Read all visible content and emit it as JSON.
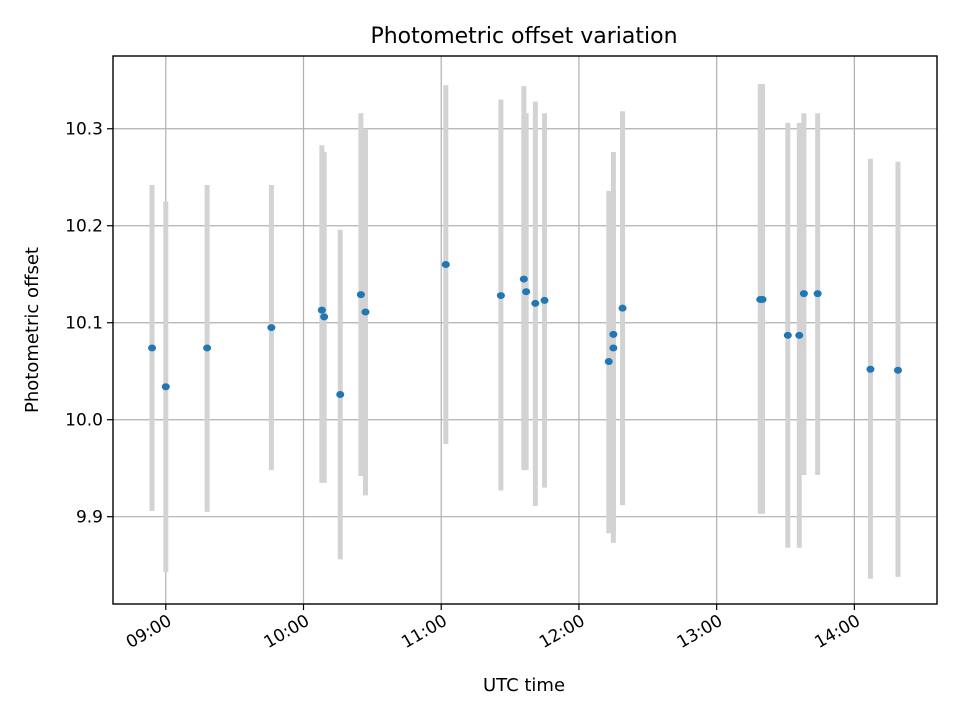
{
  "chart_data": {
    "type": "scatter",
    "title": "Photometric offset variation",
    "xlabel": "UTC time",
    "ylabel": "Photometric offset",
    "x_ticks": [
      "09:00",
      "10:00",
      "11:00",
      "12:00",
      "13:00",
      "14:00"
    ],
    "y_ticks": [
      "9.9",
      "10.0",
      "10.1",
      "10.2",
      "10.3"
    ],
    "xlim": [
      "08:37",
      "14:36"
    ],
    "ylim": [
      9.81,
      10.375
    ],
    "grid": true,
    "marker_color": "#1f77b4",
    "errorbar_color": "#d3d3d3",
    "series": [
      {
        "points": [
          {
            "x": "08:54",
            "y": 10.074,
            "y_low": 9.906,
            "y_high": 10.242
          },
          {
            "x": "09:00",
            "y": 10.034,
            "y_low": 9.843,
            "y_high": 10.225
          },
          {
            "x": "09:18",
            "y": 10.074,
            "y_low": 9.905,
            "y_high": 10.242
          },
          {
            "x": "09:46",
            "y": 10.095,
            "y_low": 9.948,
            "y_high": 10.242
          },
          {
            "x": "10:08",
            "y": 10.113,
            "y_low": 9.935,
            "y_high": 10.283
          },
          {
            "x": "10:09",
            "y": 10.106,
            "y_low": 9.935,
            "y_high": 10.276
          },
          {
            "x": "10:16",
            "y": 10.026,
            "y_low": 9.856,
            "y_high": 10.196
          },
          {
            "x": "10:25",
            "y": 10.129,
            "y_low": 9.942,
            "y_high": 10.316
          },
          {
            "x": "10:27",
            "y": 10.111,
            "y_low": 9.922,
            "y_high": 10.3
          },
          {
            "x": "11:02",
            "y": 10.16,
            "y_low": 9.975,
            "y_high": 10.345
          },
          {
            "x": "11:26",
            "y": 10.128,
            "y_low": 9.927,
            "y_high": 10.33
          },
          {
            "x": "11:36",
            "y": 10.145,
            "y_low": 9.948,
            "y_high": 10.344
          },
          {
            "x": "11:37",
            "y": 10.132,
            "y_low": 9.948,
            "y_high": 10.316
          },
          {
            "x": "11:41",
            "y": 10.12,
            "y_low": 9.911,
            "y_high": 10.328
          },
          {
            "x": "11:45",
            "y": 10.123,
            "y_low": 9.93,
            "y_high": 10.316
          },
          {
            "x": "12:13",
            "y": 10.06,
            "y_low": 9.883,
            "y_high": 10.236
          },
          {
            "x": "12:15",
            "y": 10.074,
            "y_low": 9.873,
            "y_high": 10.276
          },
          {
            "x": "12:15",
            "y": 10.088,
            "y_low": 9.883,
            "y_high": 10.236
          },
          {
            "x": "12:19",
            "y": 10.115,
            "y_low": 9.912,
            "y_high": 10.318
          },
          {
            "x": "13:19",
            "y": 10.124,
            "y_low": 9.903,
            "y_high": 10.346
          },
          {
            "x": "13:20",
            "y": 10.124,
            "y_low": 9.903,
            "y_high": 10.346
          },
          {
            "x": "13:31",
            "y": 10.087,
            "y_low": 9.868,
            "y_high": 10.306
          },
          {
            "x": "13:36",
            "y": 10.087,
            "y_low": 9.868,
            "y_high": 10.306
          },
          {
            "x": "13:38",
            "y": 10.13,
            "y_low": 9.943,
            "y_high": 10.316
          },
          {
            "x": "13:44",
            "y": 10.13,
            "y_low": 9.943,
            "y_high": 10.316
          },
          {
            "x": "14:07",
            "y": 10.052,
            "y_low": 9.836,
            "y_high": 10.269
          },
          {
            "x": "14:19",
            "y": 10.051,
            "y_low": 9.838,
            "y_high": 10.266
          }
        ]
      }
    ]
  }
}
